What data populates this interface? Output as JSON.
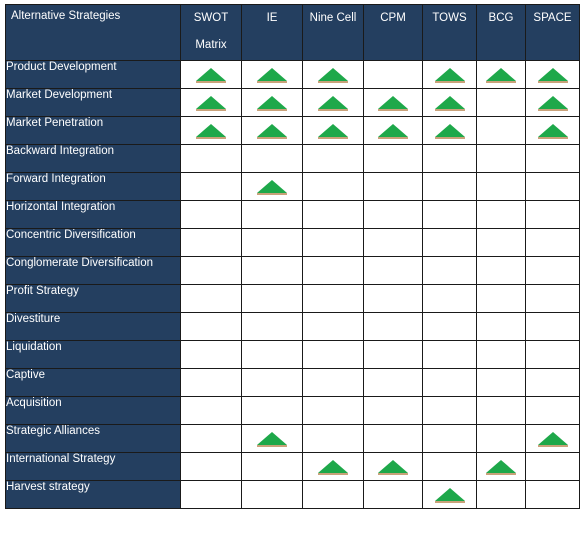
{
  "columns": [
    "Alternative Strategies",
    "SWOT Matrix",
    "IE",
    "Nine Cell",
    "CPM",
    "TOWS",
    "BCG",
    "SPACE"
  ],
  "rows": [
    {
      "label": "Product Development",
      "marks": [
        true,
        true,
        true,
        false,
        true,
        true,
        true
      ]
    },
    {
      "label": "Market Development",
      "marks": [
        true,
        true,
        true,
        true,
        true,
        false,
        true
      ]
    },
    {
      "label": "Market Penetration",
      "marks": [
        true,
        true,
        true,
        true,
        true,
        false,
        true
      ]
    },
    {
      "label": "Backward Integration",
      "marks": [
        false,
        false,
        false,
        false,
        false,
        false,
        false
      ]
    },
    {
      "label": "Forward Integration",
      "marks": [
        false,
        true,
        false,
        false,
        false,
        false,
        false
      ]
    },
    {
      "label": "Horizontal Integration",
      "marks": [
        false,
        false,
        false,
        false,
        false,
        false,
        false
      ]
    },
    {
      "label": "Concentric Diversification",
      "marks": [
        false,
        false,
        false,
        false,
        false,
        false,
        false
      ]
    },
    {
      "label": "Conglomerate Diversification",
      "marks": [
        false,
        false,
        false,
        false,
        false,
        false,
        false
      ]
    },
    {
      "label": "Profit Strategy",
      "marks": [
        false,
        false,
        false,
        false,
        false,
        false,
        false
      ]
    },
    {
      "label": "Divestiture",
      "marks": [
        false,
        false,
        false,
        false,
        false,
        false,
        false
      ]
    },
    {
      "label": "Liquidation",
      "marks": [
        false,
        false,
        false,
        false,
        false,
        false,
        false
      ]
    },
    {
      "label": "Captive",
      "marks": [
        false,
        false,
        false,
        false,
        false,
        false,
        false
      ]
    },
    {
      "label": "Acquisition",
      "marks": [
        false,
        false,
        false,
        false,
        false,
        false,
        false
      ]
    },
    {
      "label": "Strategic Alliances",
      "marks": [
        false,
        true,
        false,
        false,
        false,
        false,
        true
      ]
    },
    {
      "label": "International Strategy",
      "marks": [
        false,
        false,
        true,
        true,
        false,
        true,
        false
      ]
    },
    {
      "label": "Harvest strategy",
      "marks": [
        false,
        false,
        false,
        false,
        true,
        false,
        false
      ]
    }
  ],
  "marker": {
    "icon": "green-triangle-icon",
    "fill": "#1ea84a",
    "shadow": "#c9a27a"
  },
  "colors": {
    "header_bg": "#243f60",
    "header_text": "#ffffff",
    "border": "#1a1a1a"
  }
}
